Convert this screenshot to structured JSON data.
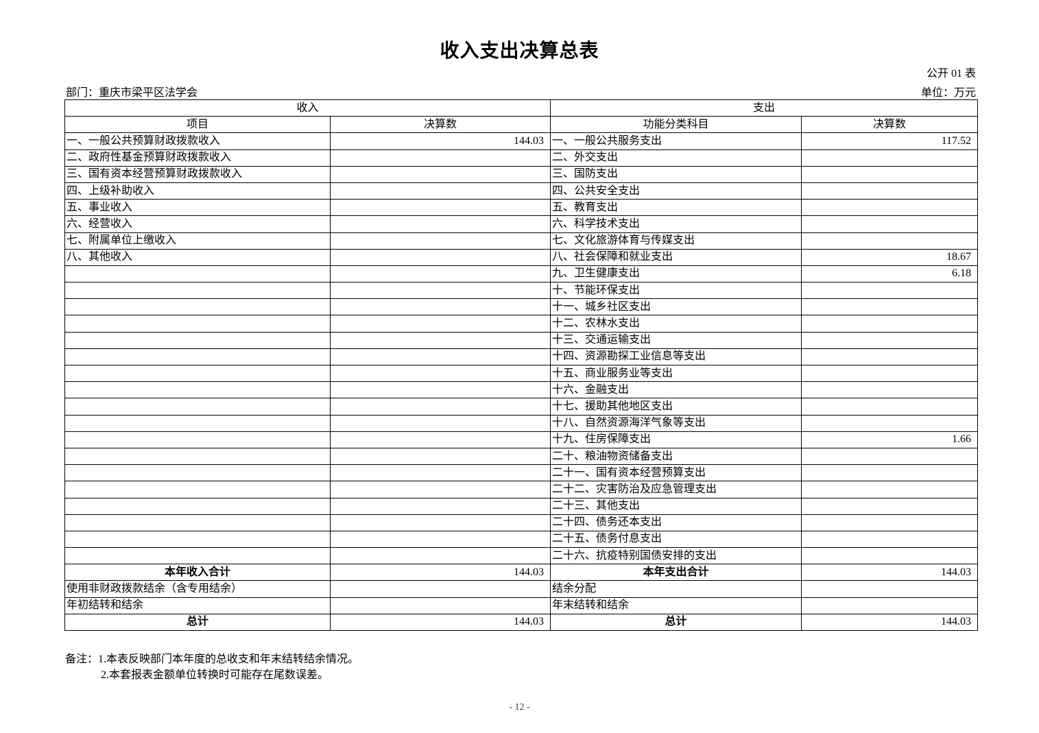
{
  "title": "收入支出决算总表",
  "form_no": "公开 01 表",
  "department": "部门：重庆市梁平区法学会",
  "unit": "单位：万元",
  "table": {
    "income_header": "收入",
    "expense_header": "支出",
    "income_item_header": "项目",
    "income_value_header": "决算数",
    "expense_item_header": "功能分类科目",
    "expense_value_header": "决算数",
    "rows": [
      {
        "income_item": "一、一般公共预算财政拨款收入",
        "income_value": "144.03",
        "expense_item": "一、一般公共服务支出",
        "expense_value": "117.52"
      },
      {
        "income_item": "二、政府性基金预算财政拨款收入",
        "income_value": "",
        "expense_item": "二、外交支出",
        "expense_value": ""
      },
      {
        "income_item": "三、国有资本经营预算财政拨款收入",
        "income_value": "",
        "expense_item": "三、国防支出",
        "expense_value": ""
      },
      {
        "income_item": "四、上级补助收入",
        "income_value": "",
        "expense_item": "四、公共安全支出",
        "expense_value": ""
      },
      {
        "income_item": "五、事业收入",
        "income_value": "",
        "expense_item": "五、教育支出",
        "expense_value": ""
      },
      {
        "income_item": "六、经营收入",
        "income_value": "",
        "expense_item": "六、科学技术支出",
        "expense_value": ""
      },
      {
        "income_item": "七、附属单位上缴收入",
        "income_value": "",
        "expense_item": "七、文化旅游体育与传媒支出",
        "expense_value": ""
      },
      {
        "income_item": "八、其他收入",
        "income_value": "",
        "expense_item": "八、社会保障和就业支出",
        "expense_value": "18.67"
      },
      {
        "income_item": "",
        "income_value": "",
        "expense_item": "九、卫生健康支出",
        "expense_value": "6.18"
      },
      {
        "income_item": "",
        "income_value": "",
        "expense_item": "十、节能环保支出",
        "expense_value": ""
      },
      {
        "income_item": "",
        "income_value": "",
        "expense_item": "十一、城乡社区支出",
        "expense_value": ""
      },
      {
        "income_item": "",
        "income_value": "",
        "expense_item": "十二、农林水支出",
        "expense_value": ""
      },
      {
        "income_item": "",
        "income_value": "",
        "expense_item": "十三、交通运输支出",
        "expense_value": ""
      },
      {
        "income_item": "",
        "income_value": "",
        "expense_item": "十四、资源勘探工业信息等支出",
        "expense_value": ""
      },
      {
        "income_item": "",
        "income_value": "",
        "expense_item": "十五、商业服务业等支出",
        "expense_value": ""
      },
      {
        "income_item": "",
        "income_value": "",
        "expense_item": "十六、金融支出",
        "expense_value": ""
      },
      {
        "income_item": "",
        "income_value": "",
        "expense_item": "十七、援助其他地区支出",
        "expense_value": ""
      },
      {
        "income_item": "",
        "income_value": "",
        "expense_item": "十八、自然资源海洋气象等支出",
        "expense_value": ""
      },
      {
        "income_item": "",
        "income_value": "",
        "expense_item": "十九、住房保障支出",
        "expense_value": "1.66"
      },
      {
        "income_item": "",
        "income_value": "",
        "expense_item": "二十、粮油物资储备支出",
        "expense_value": ""
      },
      {
        "income_item": "",
        "income_value": "",
        "expense_item": "二十一、国有资本经营预算支出",
        "expense_value": ""
      },
      {
        "income_item": "",
        "income_value": "",
        "expense_item": "二十二、灾害防治及应急管理支出",
        "expense_value": ""
      },
      {
        "income_item": "",
        "income_value": "",
        "expense_item": "二十三、其他支出",
        "expense_value": ""
      },
      {
        "income_item": "",
        "income_value": "",
        "expense_item": "二十四、债务还本支出",
        "expense_value": ""
      },
      {
        "income_item": "",
        "income_value": "",
        "expense_item": "二十五、债务付息支出",
        "expense_value": ""
      },
      {
        "income_item": "",
        "income_value": "",
        "expense_item": "二十六、抗疫特别国债安排的支出",
        "expense_value": ""
      }
    ],
    "summary_rows": [
      {
        "income_item": "本年收入合计",
        "income_value": "144.03",
        "expense_item": "本年支出合计",
        "expense_value": "144.03",
        "centered": true
      },
      {
        "income_item": "使用非财政拨款结余（含专用结余）",
        "income_value": "",
        "expense_item": "结余分配",
        "expense_value": "",
        "centered": false
      },
      {
        "income_item": "年初结转和结余",
        "income_value": "",
        "expense_item": "年末结转和结余",
        "expense_value": "",
        "centered": false
      },
      {
        "income_item": "总计",
        "income_value": "144.03",
        "expense_item": "总计",
        "expense_value": "144.03",
        "centered": true
      }
    ]
  },
  "notes": {
    "line1": "备注：1.本表反映部门本年度的总收支和年末结转结余情况。",
    "line2": "2.本套报表金额单位转换时可能存在尾数误差。"
  },
  "page_number": "- 12 -"
}
